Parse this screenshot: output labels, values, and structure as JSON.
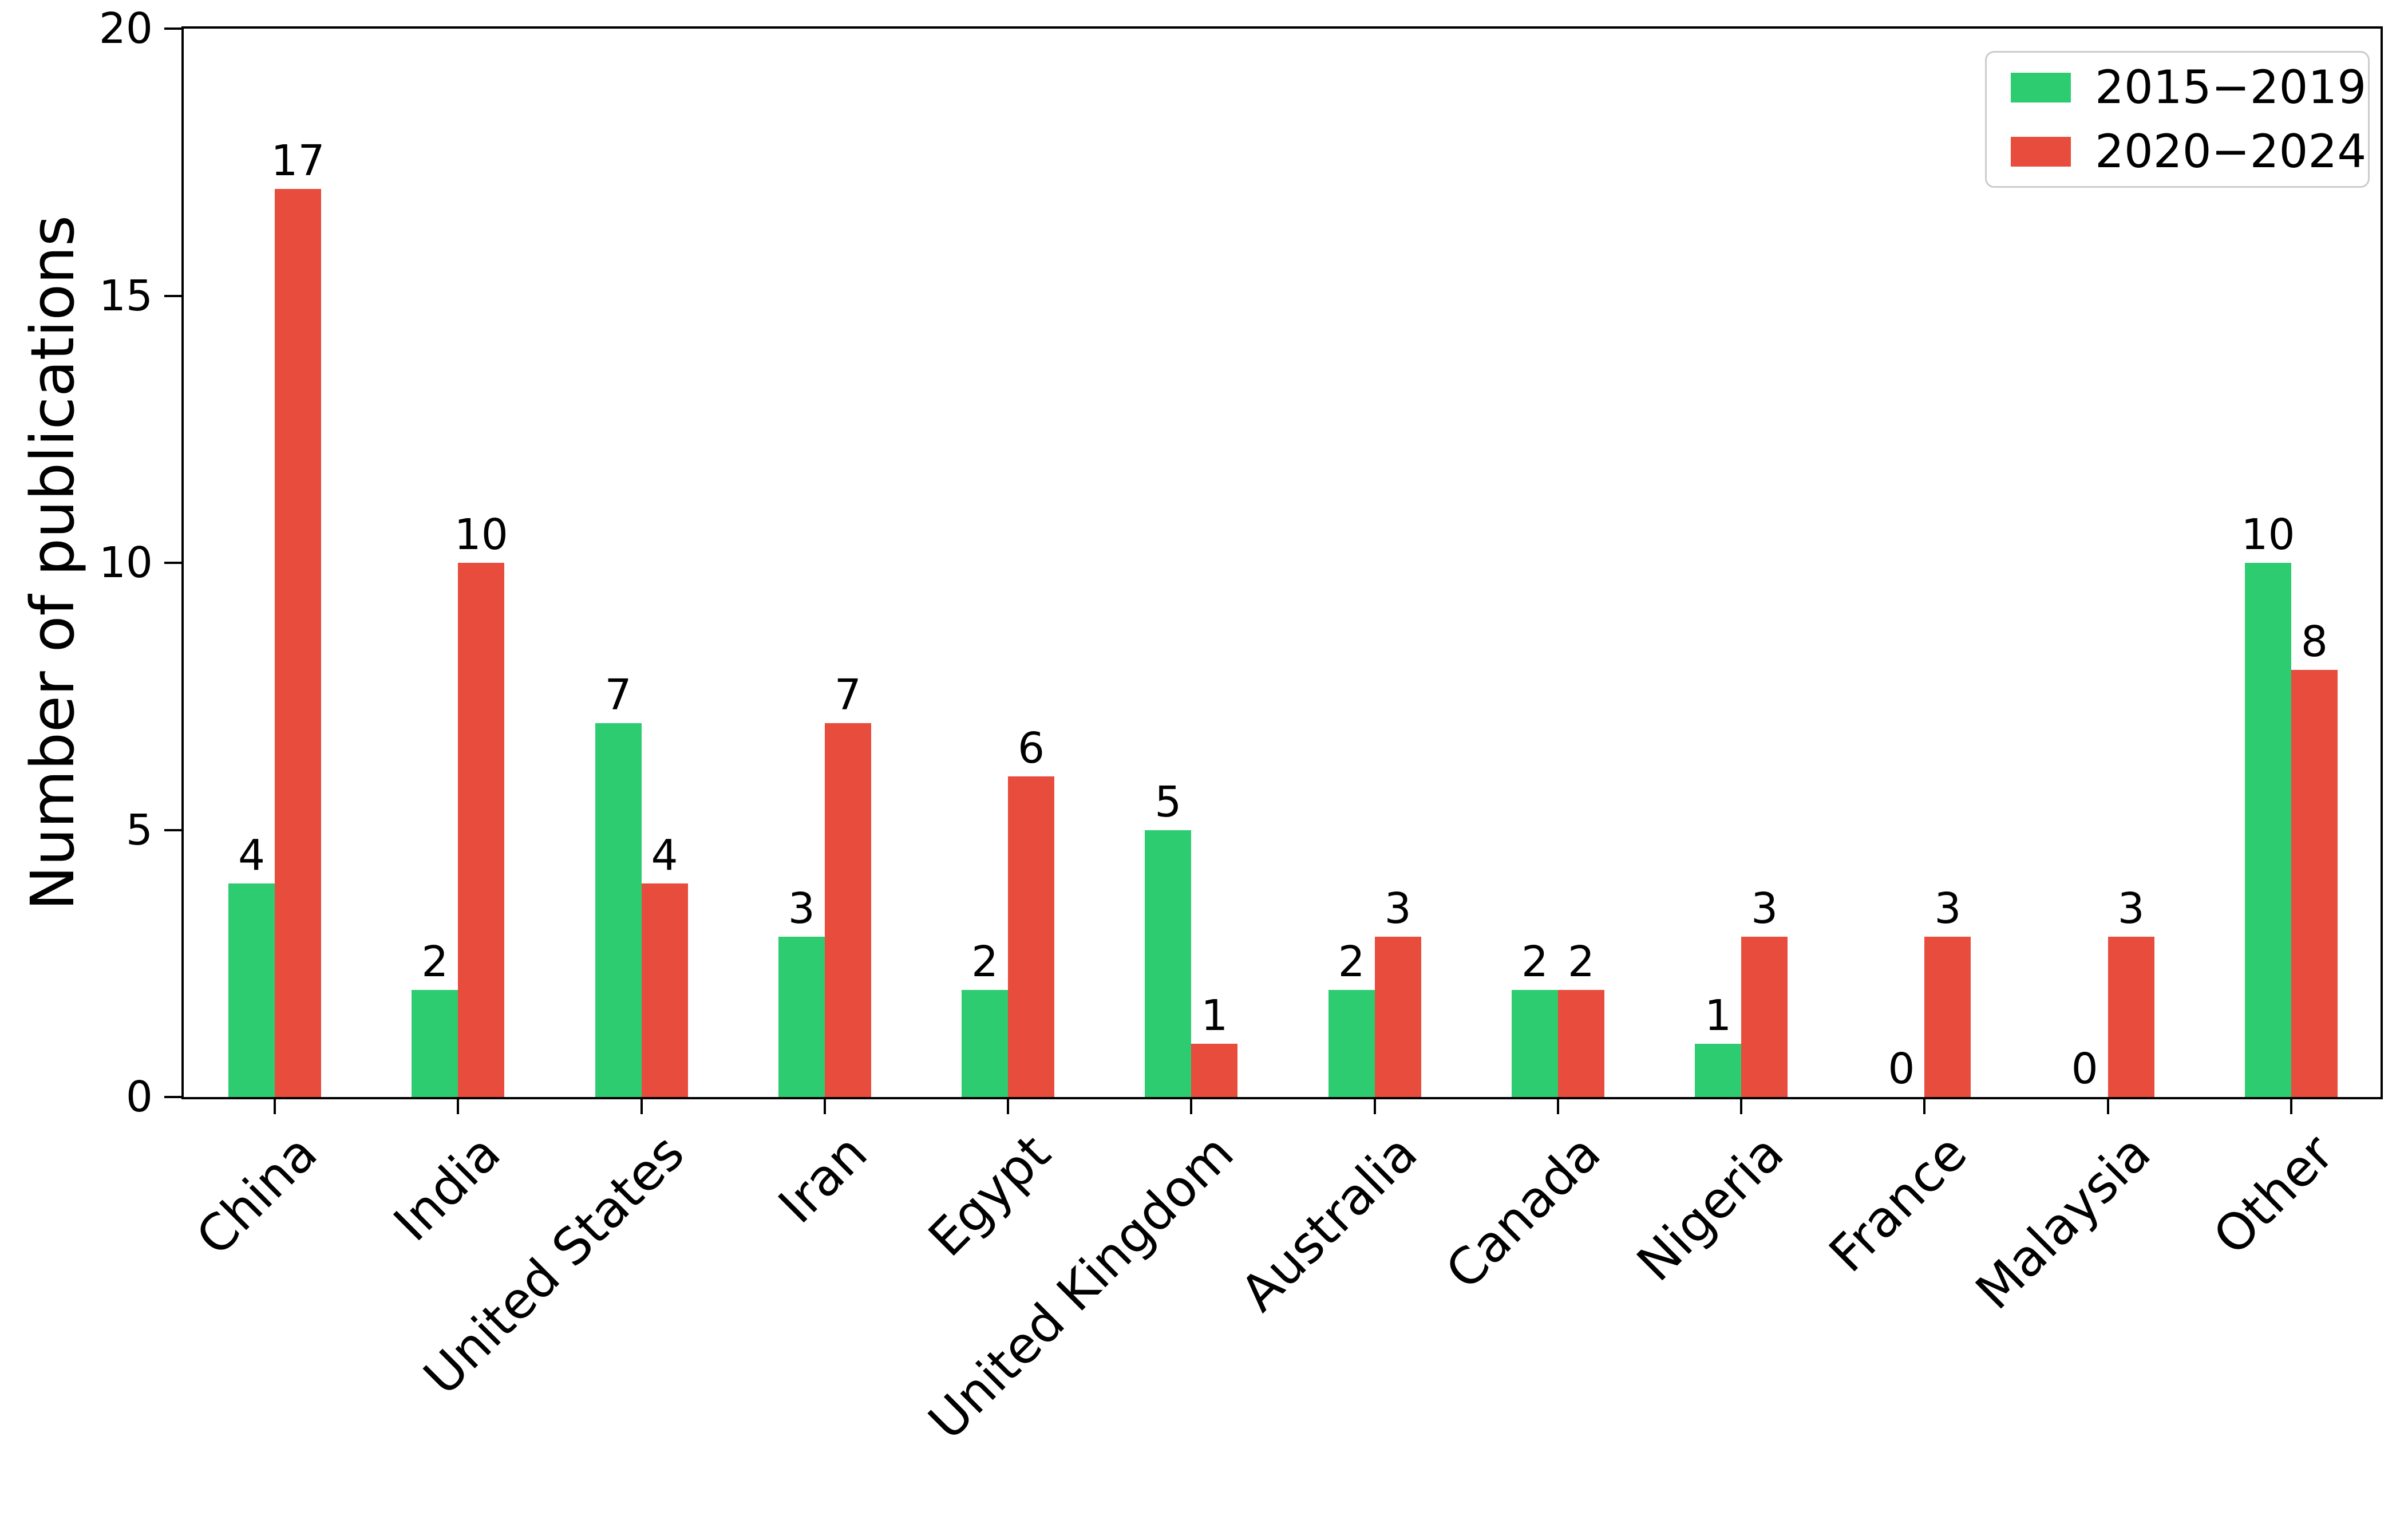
{
  "chart_data": {
    "type": "bar",
    "title": "",
    "xlabel": "",
    "ylabel": "Number of publications",
    "ylim": [
      0,
      20
    ],
    "yticks": [
      0,
      5,
      10,
      15,
      20
    ],
    "grid": false,
    "legend_position": "top-right",
    "bar_value_labels": true,
    "categories": [
      "China",
      "India",
      "United States",
      "Iran",
      "Egypt",
      "United Kingdom",
      "Australia",
      "Canada",
      "Nigeria",
      "France",
      "Malaysia",
      "Other"
    ],
    "series": [
      {
        "name": "2015−2019",
        "color": "#2ecc71",
        "values": [
          4,
          2,
          7,
          3,
          2,
          5,
          2,
          2,
          1,
          0,
          0,
          10
        ]
      },
      {
        "name": "2020−2024",
        "color": "#e74c3c",
        "values": [
          17,
          10,
          4,
          7,
          6,
          1,
          3,
          2,
          3,
          3,
          3,
          8
        ]
      }
    ]
  },
  "colors": {
    "axis": "#000000",
    "text": "#000000",
    "legend_border": "#cccccc",
    "background": "#ffffff"
  }
}
